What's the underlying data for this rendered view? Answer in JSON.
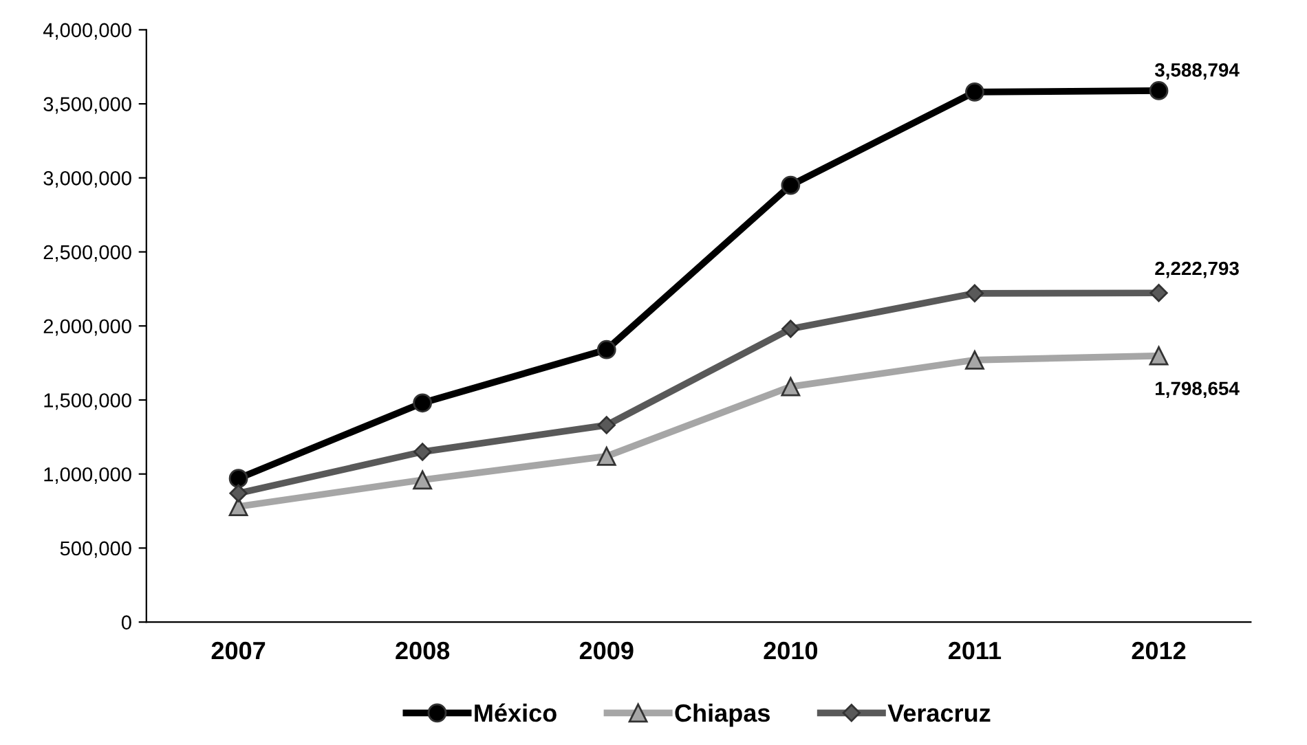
{
  "chart_data": {
    "type": "line",
    "categories": [
      "2007",
      "2008",
      "2009",
      "2010",
      "2011",
      "2012"
    ],
    "series": [
      {
        "name": "México",
        "color": "#000000",
        "marker": "circle",
        "values": [
          970000,
          1480000,
          1840000,
          2950000,
          3580000,
          3588794
        ],
        "value_labels": [
          null,
          null,
          null,
          null,
          null,
          "3,588,794"
        ]
      },
      {
        "name": "Chiapas",
        "color": "#a6a6a6",
        "marker": "triangle",
        "values": [
          780000,
          960000,
          1120000,
          1590000,
          1770000,
          1798654
        ],
        "value_labels": [
          null,
          null,
          null,
          null,
          null,
          "1,798,654"
        ]
      },
      {
        "name": "Veracruz",
        "color": "#595959",
        "marker": "diamond",
        "values": [
          870000,
          1150000,
          1330000,
          1980000,
          2220000,
          2222793
        ],
        "value_labels": [
          null,
          null,
          null,
          null,
          null,
          "2,222,793"
        ]
      }
    ],
    "ylim": [
      0,
      4000000
    ],
    "yticks": [
      {
        "value": 0,
        "label": "0"
      },
      {
        "value": 500000,
        "label": "500,000"
      },
      {
        "value": 1000000,
        "label": "1,000,000"
      },
      {
        "value": 1500000,
        "label": "1,500,000"
      },
      {
        "value": 2000000,
        "label": "2,000,000"
      },
      {
        "value": 2500000,
        "label": "2,500,000"
      },
      {
        "value": 3000000,
        "label": "3,000,000"
      },
      {
        "value": 3500000,
        "label": "3,500,000"
      },
      {
        "value": 4000000,
        "label": "4,000,000"
      }
    ],
    "grid": false,
    "legend": "bottom",
    "line_style": "solid"
  }
}
